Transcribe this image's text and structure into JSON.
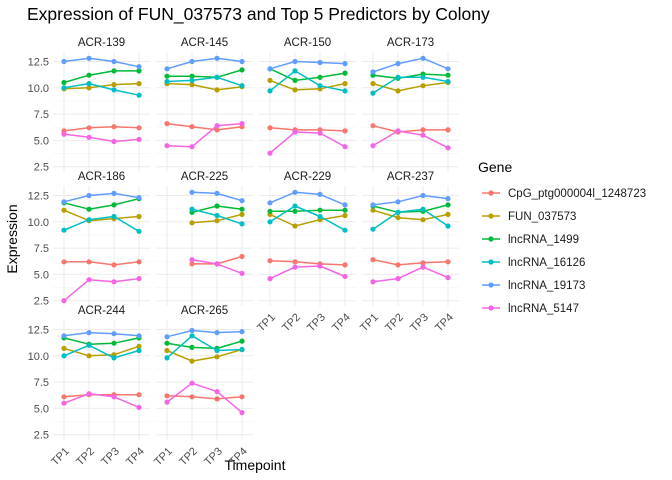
{
  "chart_data": {
    "type": "line",
    "title": "Expression of FUN_037573 and Top 5 Predictors by Colony",
    "xlabel": "Timepoint",
    "ylabel": "Expression",
    "x": [
      "TP1",
      "TP2",
      "TP3",
      "TP4"
    ],
    "ylim": [
      2.0,
      13.4
    ],
    "yticks": [
      2.5,
      5.0,
      7.5,
      10.0,
      12.5
    ],
    "ytick_labels": [
      "2.5",
      "5.0",
      "7.5",
      "10.0",
      "12.5"
    ],
    "grid": true,
    "legend": {
      "title": "Gene",
      "position": "right",
      "entries": [
        "CpG_ptg000004l_1248723",
        "FUN_037573",
        "lncRNA_1499",
        "lncRNA_16126",
        "lncRNA_19173",
        "lncRNA_5147"
      ]
    },
    "series_colors": {
      "CpG_ptg000004l_1248723": "#F8766D",
      "FUN_037573": "#B79F00",
      "lncRNA_1499": "#00BA38",
      "lncRNA_16126": "#00BFC4",
      "lncRNA_19173": "#619CFF",
      "lncRNA_5147": "#F564E3"
    },
    "panels": [
      {
        "colony": "ACR-139",
        "series": [
          {
            "name": "CpG_ptg000004l_1248723",
            "values": [
              5.9,
              6.2,
              6.3,
              6.2
            ]
          },
          {
            "name": "FUN_037573",
            "values": [
              9.9,
              10.0,
              10.3,
              10.4
            ]
          },
          {
            "name": "lncRNA_1499",
            "values": [
              10.5,
              11.2,
              11.6,
              11.6
            ]
          },
          {
            "name": "lncRNA_16126",
            "values": [
              10.0,
              10.4,
              9.8,
              9.3
            ]
          },
          {
            "name": "lncRNA_19173",
            "values": [
              12.5,
              12.8,
              12.5,
              12.0
            ]
          },
          {
            "name": "lncRNA_5147",
            "values": [
              5.6,
              5.3,
              4.9,
              5.1
            ]
          }
        ]
      },
      {
        "colony": "ACR-145",
        "series": [
          {
            "name": "CpG_ptg000004l_1248723",
            "values": [
              6.6,
              6.3,
              6.0,
              6.3
            ]
          },
          {
            "name": "FUN_037573",
            "values": [
              10.4,
              10.3,
              9.8,
              10.1
            ]
          },
          {
            "name": "lncRNA_1499",
            "values": [
              11.1,
              11.1,
              11.0,
              11.7
            ]
          },
          {
            "name": "lncRNA_16126",
            "values": [
              10.6,
              10.7,
              11.0,
              10.2
            ]
          },
          {
            "name": "lncRNA_19173",
            "values": [
              11.8,
              12.5,
              12.8,
              12.5
            ]
          },
          {
            "name": "lncRNA_5147",
            "values": [
              4.5,
              4.4,
              6.4,
              6.6
            ]
          }
        ]
      },
      {
        "colony": "ACR-150",
        "series": [
          {
            "name": "CpG_ptg000004l_1248723",
            "values": [
              6.2,
              6.0,
              6.0,
              5.9
            ]
          },
          {
            "name": "FUN_037573",
            "values": [
              10.7,
              9.8,
              9.9,
              10.4
            ]
          },
          {
            "name": "lncRNA_1499",
            "values": [
              11.8,
              10.7,
              11.0,
              11.4
            ]
          },
          {
            "name": "lncRNA_16126",
            "values": [
              9.7,
              11.6,
              10.2,
              9.7
            ]
          },
          {
            "name": "lncRNA_19173",
            "values": [
              11.8,
              12.5,
              12.4,
              12.3
            ]
          },
          {
            "name": "lncRNA_5147",
            "values": [
              3.8,
              5.8,
              5.7,
              4.4
            ]
          }
        ]
      },
      {
        "colony": "ACR-173",
        "series": [
          {
            "name": "CpG_ptg000004l_1248723",
            "values": [
              6.4,
              5.8,
              6.0,
              6.0
            ]
          },
          {
            "name": "FUN_037573",
            "values": [
              10.4,
              9.7,
              10.2,
              10.5
            ]
          },
          {
            "name": "lncRNA_1499",
            "values": [
              11.2,
              10.9,
              11.3,
              11.2
            ]
          },
          {
            "name": "lncRNA_16126",
            "values": [
              9.5,
              11.0,
              11.0,
              10.6
            ]
          },
          {
            "name": "lncRNA_19173",
            "values": [
              11.5,
              12.3,
              12.8,
              11.8
            ]
          },
          {
            "name": "lncRNA_5147",
            "values": [
              4.5,
              5.9,
              5.5,
              4.3
            ]
          }
        ]
      },
      {
        "colony": "ACR-186",
        "series": [
          {
            "name": "CpG_ptg000004l_1248723",
            "values": [
              6.2,
              6.2,
              5.9,
              6.2
            ]
          },
          {
            "name": "FUN_037573",
            "values": [
              11.1,
              10.1,
              10.3,
              10.5
            ]
          },
          {
            "name": "lncRNA_1499",
            "values": [
              11.8,
              11.2,
              11.6,
              12.2
            ]
          },
          {
            "name": "lncRNA_16126",
            "values": [
              9.2,
              10.2,
              10.5,
              9.1
            ]
          },
          {
            "name": "lncRNA_19173",
            "values": [
              11.9,
              12.5,
              12.7,
              12.3
            ]
          },
          {
            "name": "lncRNA_5147",
            "values": [
              2.5,
              4.5,
              4.3,
              4.6
            ]
          }
        ]
      },
      {
        "colony": "ACR-225",
        "series": [
          {
            "name": "CpG_ptg000004l_1248723",
            "values": [
              null,
              6.0,
              6.0,
              6.7
            ]
          },
          {
            "name": "FUN_037573",
            "values": [
              null,
              9.9,
              10.1,
              10.7
            ]
          },
          {
            "name": "lncRNA_1499",
            "values": [
              null,
              10.9,
              11.5,
              11.2
            ]
          },
          {
            "name": "lncRNA_16126",
            "values": [
              null,
              11.2,
              10.6,
              9.8
            ]
          },
          {
            "name": "lncRNA_19173",
            "values": [
              null,
              12.8,
              12.7,
              12.0
            ]
          },
          {
            "name": "lncRNA_5147",
            "values": [
              null,
              6.4,
              6.0,
              5.1
            ]
          }
        ]
      },
      {
        "colony": "ACR-229",
        "series": [
          {
            "name": "CpG_ptg000004l_1248723",
            "values": [
              6.3,
              6.2,
              6.0,
              5.9
            ]
          },
          {
            "name": "FUN_037573",
            "values": [
              10.7,
              9.6,
              10.2,
              10.6
            ]
          },
          {
            "name": "lncRNA_1499",
            "values": [
              11.0,
              11.0,
              11.1,
              11.1
            ]
          },
          {
            "name": "lncRNA_16126",
            "values": [
              10.0,
              11.5,
              10.5,
              9.2
            ]
          },
          {
            "name": "lncRNA_19173",
            "values": [
              11.8,
              12.8,
              12.6,
              11.6
            ]
          },
          {
            "name": "lncRNA_5147",
            "values": [
              4.6,
              5.7,
              5.8,
              4.8
            ]
          }
        ]
      },
      {
        "colony": "ACR-237",
        "series": [
          {
            "name": "CpG_ptg000004l_1248723",
            "values": [
              6.4,
              5.9,
              6.1,
              6.2
            ]
          },
          {
            "name": "FUN_037573",
            "values": [
              11.1,
              10.4,
              10.2,
              10.7
            ]
          },
          {
            "name": "lncRNA_1499",
            "values": [
              11.5,
              10.9,
              11.0,
              11.6
            ]
          },
          {
            "name": "lncRNA_16126",
            "values": [
              9.3,
              10.9,
              11.2,
              9.6
            ]
          },
          {
            "name": "lncRNA_19173",
            "values": [
              11.6,
              11.9,
              12.5,
              12.2
            ]
          },
          {
            "name": "lncRNA_5147",
            "values": [
              4.3,
              4.6,
              5.7,
              4.7
            ]
          }
        ]
      },
      {
        "colony": "ACR-244",
        "series": [
          {
            "name": "CpG_ptg000004l_1248723",
            "values": [
              6.1,
              6.3,
              6.3,
              6.3
            ]
          },
          {
            "name": "FUN_037573",
            "values": [
              10.7,
              10.0,
              10.1,
              10.9
            ]
          },
          {
            "name": "lncRNA_1499",
            "values": [
              11.7,
              11.1,
              11.2,
              11.7
            ]
          },
          {
            "name": "lncRNA_16126",
            "values": [
              10.0,
              11.0,
              9.8,
              10.5
            ]
          },
          {
            "name": "lncRNA_19173",
            "values": [
              11.9,
              12.2,
              12.1,
              11.9
            ]
          },
          {
            "name": "lncRNA_5147",
            "values": [
              5.5,
              6.4,
              6.1,
              5.1
            ]
          }
        ]
      },
      {
        "colony": "ACR-265",
        "series": [
          {
            "name": "CpG_ptg000004l_1248723",
            "values": [
              6.2,
              6.1,
              5.9,
              6.1
            ]
          },
          {
            "name": "FUN_037573",
            "values": [
              10.5,
              9.5,
              9.9,
              10.6
            ]
          },
          {
            "name": "lncRNA_1499",
            "values": [
              11.2,
              10.8,
              10.7,
              11.4
            ]
          },
          {
            "name": "lncRNA_16126",
            "values": [
              9.8,
              11.9,
              10.5,
              10.6
            ]
          },
          {
            "name": "lncRNA_19173",
            "values": [
              11.8,
              12.4,
              12.2,
              12.3
            ]
          },
          {
            "name": "lncRNA_5147",
            "values": [
              5.6,
              7.4,
              6.6,
              4.6
            ]
          }
        ]
      }
    ]
  }
}
